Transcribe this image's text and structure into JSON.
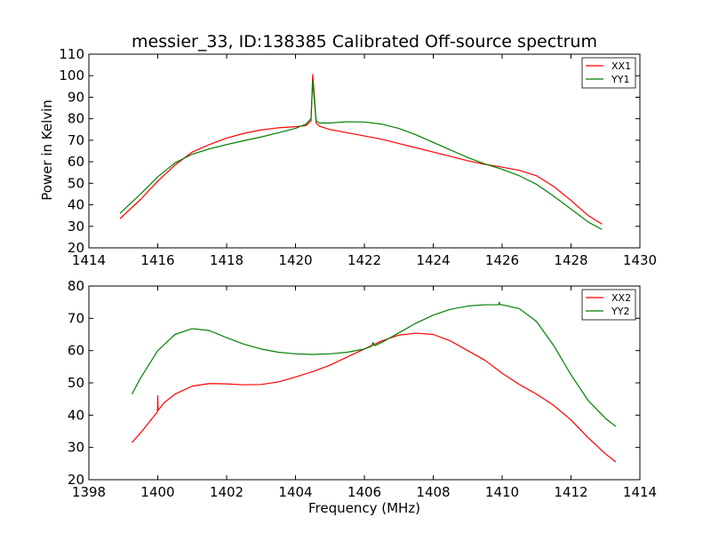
{
  "chart_data": [
    {
      "type": "line",
      "title": "messier_33, ID:138385 Calibrated Off-source spectrum",
      "xlabel": "",
      "ylabel": "Power in Kelvin",
      "xlim": [
        1414,
        1430
      ],
      "ylim": [
        20,
        110
      ],
      "xticks": [
        1414,
        1416,
        1418,
        1420,
        1422,
        1424,
        1426,
        1428,
        1430
      ],
      "yticks": [
        20,
        30,
        40,
        50,
        60,
        70,
        80,
        90,
        100,
        110
      ],
      "legend": "top-right",
      "series": [
        {
          "name": "XX1",
          "color": "#ff0000",
          "x": [
            1414.9,
            1415.5,
            1416.0,
            1416.5,
            1417.0,
            1417.5,
            1418.0,
            1418.5,
            1419.0,
            1419.5,
            1420.0,
            1420.3,
            1420.45,
            1420.5,
            1420.55,
            1420.6,
            1420.7,
            1421.0,
            1421.5,
            1422.0,
            1422.5,
            1423.0,
            1423.5,
            1424.0,
            1424.5,
            1425.0,
            1425.5,
            1426.0,
            1426.5,
            1427.0,
            1427.5,
            1428.0,
            1428.5,
            1428.9
          ],
          "y": [
            33.5,
            42.5,
            51,
            58.5,
            64.5,
            68,
            71,
            73.2,
            74.8,
            75.8,
            76.3,
            76.8,
            79,
            100.5,
            90,
            78,
            76.5,
            75,
            73.5,
            72,
            70.5,
            68.5,
            66.5,
            64.5,
            62.5,
            60.5,
            58.8,
            57.5,
            56,
            53.5,
            48.5,
            42,
            35,
            31
          ]
        },
        {
          "name": "YY1",
          "color": "#008000",
          "x": [
            1414.9,
            1415.5,
            1416.0,
            1416.5,
            1417.0,
            1417.5,
            1418.0,
            1418.5,
            1419.0,
            1419.5,
            1420.0,
            1420.3,
            1420.45,
            1420.5,
            1420.55,
            1420.6,
            1420.7,
            1421.0,
            1421.5,
            1422.0,
            1422.5,
            1423.0,
            1423.5,
            1424.0,
            1424.5,
            1425.0,
            1425.5,
            1426.0,
            1426.5,
            1427.0,
            1427.5,
            1428.0,
            1428.5,
            1428.9
          ],
          "y": [
            36,
            45,
            53,
            59.5,
            63.5,
            66,
            68,
            69.8,
            71.5,
            73.5,
            75.5,
            77.5,
            80,
            97.5,
            88,
            79,
            78,
            78,
            78.6,
            78.5,
            77.5,
            75.5,
            72.5,
            69,
            65.5,
            62,
            59,
            56.5,
            53.5,
            49.5,
            44,
            38,
            32,
            28.5
          ]
        }
      ]
    },
    {
      "type": "line",
      "title": "",
      "xlabel": "Frequency (MHz)",
      "ylabel": "",
      "xlim": [
        1398,
        1414
      ],
      "ylim": [
        20,
        80
      ],
      "xticks": [
        1398,
        1400,
        1402,
        1404,
        1406,
        1408,
        1410,
        1412,
        1414
      ],
      "yticks": [
        20,
        30,
        40,
        50,
        60,
        70,
        80
      ],
      "legend": "top-right",
      "series": [
        {
          "name": "XX2",
          "color": "#ff0000",
          "x": [
            1399.25,
            1399.5,
            1399.8,
            1399.99,
            1400.0,
            1400.01,
            1400.2,
            1400.5,
            1401.0,
            1401.5,
            1402.0,
            1402.5,
            1403.0,
            1403.5,
            1404.0,
            1404.5,
            1405.0,
            1405.5,
            1406.0,
            1406.5,
            1407.0,
            1407.5,
            1408.0,
            1408.5,
            1409.0,
            1409.5,
            1410.0,
            1410.5,
            1411.0,
            1411.5,
            1412.0,
            1412.5,
            1413.0,
            1413.3
          ],
          "y": [
            31.5,
            34.5,
            38.5,
            41,
            46,
            41.5,
            44,
            46.5,
            49,
            49.8,
            49.7,
            49.4,
            49.5,
            50.3,
            51.8,
            53.5,
            55.5,
            58,
            60.5,
            63,
            64.8,
            65.4,
            65,
            63,
            60,
            57,
            53,
            49.5,
            46.5,
            43,
            38.5,
            33,
            28,
            25.5
          ]
        },
        {
          "name": "YY2",
          "color": "#008000",
          "x": [
            1399.25,
            1399.5,
            1400.0,
            1400.5,
            1401.0,
            1401.5,
            1402.0,
            1402.5,
            1403.0,
            1403.5,
            1404.0,
            1404.5,
            1405.0,
            1405.5,
            1406.0,
            1406.2,
            1406.25,
            1406.3,
            1406.5,
            1407.0,
            1407.5,
            1408.0,
            1408.5,
            1409.0,
            1409.5,
            1409.9,
            1409.92,
            1409.94,
            1410.0,
            1410.5,
            1411.0,
            1411.5,
            1412.0,
            1412.5,
            1413.0,
            1413.3
          ],
          "y": [
            46.5,
            51.5,
            60,
            65,
            66.8,
            66.2,
            64,
            62,
            60.5,
            59.5,
            59,
            58.8,
            59,
            59.5,
            60.5,
            61.3,
            62.5,
            61.5,
            62.5,
            65.5,
            68.5,
            71,
            72.8,
            73.8,
            74.2,
            74.2,
            75,
            74.2,
            74.2,
            73,
            69,
            61.5,
            52.5,
            44.5,
            39,
            36.5
          ]
        }
      ]
    }
  ]
}
